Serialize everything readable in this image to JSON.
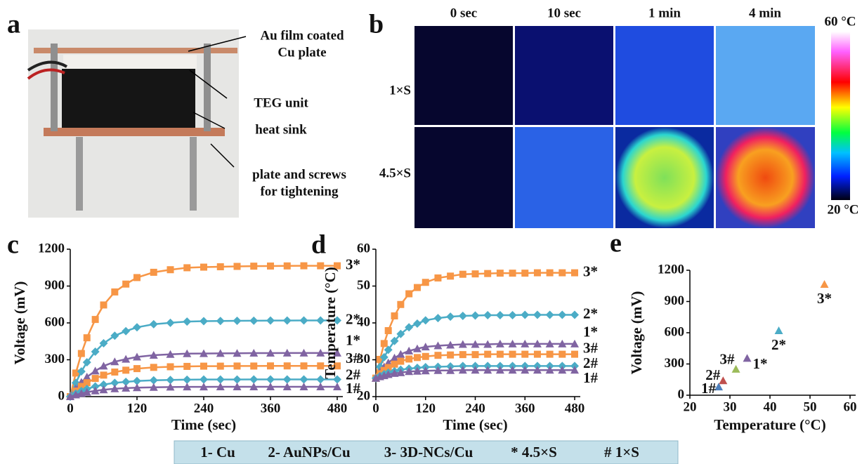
{
  "photo": {
    "panel_label": "a",
    "annotations": [
      {
        "lines": [
          "Au film coated",
          "Cu plate"
        ]
      },
      {
        "lines": [
          "TEG unit"
        ]
      },
      {
        "lines": [
          "heat sink"
        ]
      },
      {
        "lines": [
          "plate and screws",
          "for tightening"
        ]
      }
    ]
  },
  "thermal": {
    "panel_label": "b",
    "columns": [
      "0 sec",
      "10 sec",
      "1 min",
      "4 min"
    ],
    "rows": [
      "1×S",
      "4.5×S"
    ],
    "colorbar": {
      "max_label": "60 °C",
      "min_label": "20 °C"
    }
  },
  "chart_data": [
    {
      "type": "line",
      "panel_label": "c",
      "x_label": "Time  (sec)",
      "y_label": "Voltage (mV)",
      "x": [
        0,
        10,
        20,
        30,
        45,
        60,
        80,
        100,
        120,
        150,
        180,
        210,
        240,
        270,
        300,
        330,
        360,
        390,
        420,
        450,
        480
      ],
      "xlim": [
        0,
        480
      ],
      "xticks": [
        0,
        120,
        240,
        360,
        480
      ],
      "ylim": [
        0,
        1200
      ],
      "yticks": [
        0,
        300,
        600,
        900,
        1200
      ],
      "series": [
        {
          "name": "3*",
          "color": "#f79646",
          "marker": "square",
          "values": [
            0,
            192,
            351,
            479,
            628,
            746,
            852,
            916,
            969,
            1012,
            1033,
            1049,
            1054,
            1057,
            1060,
            1062,
            1063,
            1064,
            1065,
            1065,
            1065
          ]
        },
        {
          "name": "2*",
          "color": "#4bacc6",
          "marker": "diamond",
          "values": [
            0,
            112,
            205,
            279,
            366,
            434,
            496,
            533,
            564,
            589,
            601,
            611,
            614,
            616,
            617,
            618,
            619,
            619,
            620,
            620,
            620
          ]
        },
        {
          "name": "1*",
          "color": "#8064a2",
          "marker": "triangle",
          "values": [
            0,
            64,
            117,
            160,
            209,
            249,
            284,
            305,
            323,
            337,
            344,
            350,
            351,
            352,
            353,
            354,
            354,
            355,
            355,
            355,
            355
          ]
        },
        {
          "name": "3#",
          "color": "#f79646",
          "marker": "square",
          "values": [
            0,
            45,
            83,
            113,
            148,
            175,
            200,
            215,
            228,
            238,
            243,
            246,
            248,
            248,
            249,
            249,
            250,
            250,
            250,
            250,
            250
          ]
        },
        {
          "name": "2#",
          "color": "#4bacc6",
          "marker": "diamond",
          "values": [
            0,
            25,
            46,
            63,
            83,
            98,
            112,
            120,
            127,
            133,
            136,
            138,
            139,
            139,
            139,
            140,
            140,
            140,
            140,
            140,
            140
          ]
        },
        {
          "name": "1#",
          "color": "#8064a2",
          "marker": "triangle",
          "values": [
            0,
            14,
            26,
            36,
            47,
            56,
            64,
            69,
            73,
            76,
            78,
            79,
            79,
            80,
            80,
            80,
            80,
            80,
            80,
            80,
            80
          ]
        }
      ]
    },
    {
      "type": "line",
      "panel_label": "d",
      "x_label": "Time  (sec)",
      "y_label": "Temperature (°C)",
      "x": [
        0,
        10,
        20,
        30,
        45,
        60,
        80,
        100,
        120,
        150,
        180,
        210,
        240,
        270,
        300,
        330,
        360,
        390,
        420,
        450,
        480
      ],
      "xlim": [
        0,
        480
      ],
      "xticks": [
        0,
        120,
        240,
        360,
        480
      ],
      "ylim": [
        20,
        60
      ],
      "yticks": [
        20,
        30,
        40,
        50,
        60
      ],
      "series": [
        {
          "name": "3*",
          "color": "#f79646",
          "marker": "square",
          "values": [
            25,
            30.1,
            34.4,
            37.9,
            41.9,
            45.0,
            47.9,
            49.6,
            51.0,
            52.2,
            52.7,
            53.2,
            53.3,
            53.4,
            53.5,
            53.5,
            53.5,
            53.6,
            53.6,
            53.6,
            53.6
          ]
        },
        {
          "name": "2*",
          "color": "#4bacc6",
          "marker": "diamond",
          "values": [
            25,
            28.1,
            30.7,
            32.7,
            35.1,
            37.0,
            38.8,
            39.8,
            40.7,
            41.3,
            41.7,
            41.9,
            42.0,
            42.1,
            42.1,
            42.1,
            42.2,
            42.2,
            42.2,
            42.2,
            42.2
          ]
        },
        {
          "name": "1*",
          "color": "#8064a2",
          "marker": "triangle",
          "values": [
            25,
            26.7,
            28.1,
            29.2,
            30.5,
            31.5,
            32.4,
            33.0,
            33.5,
            33.8,
            34.0,
            34.2,
            34.2,
            34.2,
            34.3,
            34.3,
            34.3,
            34.3,
            34.3,
            34.3,
            34.3
          ]
        },
        {
          "name": "3#",
          "color": "#f79646",
          "marker": "square",
          "values": [
            25,
            26.2,
            27.1,
            27.9,
            28.8,
            29.6,
            30.2,
            30.6,
            30.9,
            31.2,
            31.3,
            31.4,
            31.4,
            31.5,
            31.5,
            31.5,
            31.5,
            31.5,
            31.5,
            31.5,
            31.5
          ]
        },
        {
          "name": "2#",
          "color": "#4bacc6",
          "marker": "diamond",
          "values": [
            25,
            25.6,
            26.1,
            26.5,
            26.9,
            27.3,
            27.6,
            27.8,
            28.0,
            28.1,
            28.2,
            28.3,
            28.3,
            28.3,
            28.3,
            28.3,
            28.3,
            28.3,
            28.3,
            28.3,
            28.3
          ]
        },
        {
          "name": "1#",
          "color": "#8064a2",
          "marker": "triangle",
          "values": [
            25,
            25.4,
            25.7,
            26.0,
            26.3,
            26.5,
            26.8,
            26.9,
            27.0,
            27.1,
            27.1,
            27.2,
            27.2,
            27.2,
            27.2,
            27.2,
            27.2,
            27.2,
            27.2,
            27.2,
            27.2
          ]
        }
      ]
    },
    {
      "type": "scatter",
      "panel_label": "e",
      "x_label": "Temperature (°C)",
      "y_label": "Voltage (mV)",
      "xlim": [
        20,
        60
      ],
      "xticks": [
        20,
        30,
        40,
        50,
        60
      ],
      "ylim": [
        0,
        1200
      ],
      "yticks": [
        0,
        300,
        600,
        900,
        1200
      ],
      "x": [
        27.2,
        28.3,
        31.5,
        34.3,
        42.2,
        53.6
      ],
      "values": [
        80,
        140,
        250,
        355,
        620,
        1065
      ],
      "point_labels": [
        "1#",
        "2#",
        "3#",
        "1*",
        "2*",
        "3*"
      ],
      "colors": [
        "#4f81bd",
        "#c0504d",
        "#9bbb59",
        "#8064a2",
        "#4bacc6",
        "#f79646"
      ]
    }
  ],
  "legend_bar": [
    "1- Cu",
    "2- AuNPs/Cu",
    "3- 3D-NCs/Cu",
    "* 4.5×S",
    "# 1×S"
  ]
}
